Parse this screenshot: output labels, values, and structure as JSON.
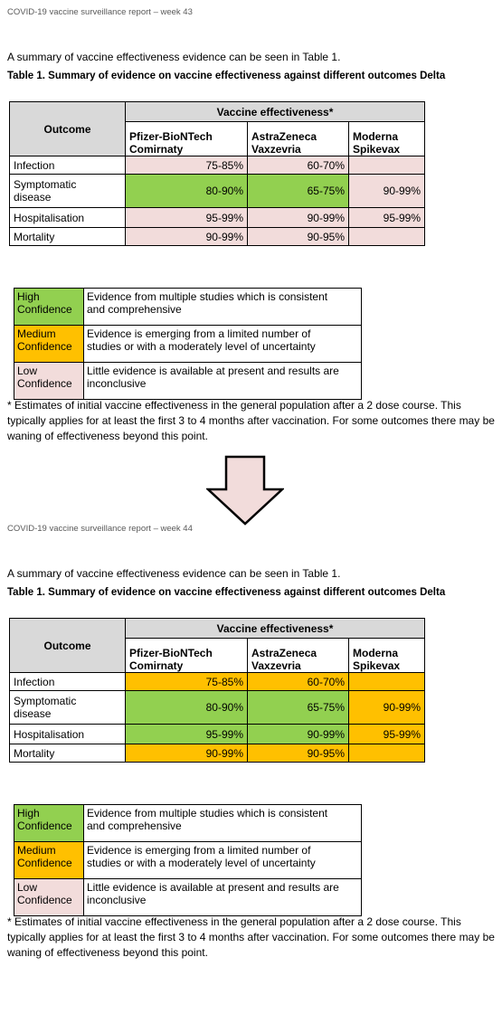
{
  "reports": [
    {
      "header": "COVID-19 vaccine surveillance report – week 43",
      "intro": "A summary of vaccine effectiveness evidence can be seen in Table 1.",
      "caption": "Table 1. Summary of evidence on vaccine effectiveness against different outcomes Delta",
      "table": {
        "outcome_header": "Outcome",
        "group_header": "Vaccine effectiveness*",
        "columns": [
          "Pfizer-BioNTech\nComirnaty",
          "AstraZeneca\nVaxzevria",
          "Moderna\nSpikevax"
        ],
        "rows": [
          {
            "label": "Infection",
            "cells": [
              {
                "text": "75-85%",
                "color": "#f2dcdb"
              },
              {
                "text": "60-70%",
                "color": "#f2dcdb"
              },
              {
                "text": null,
                "color": "#f2dcdb"
              }
            ]
          },
          {
            "label": "Symptomatic\ndisease",
            "cells": [
              {
                "text": "80-90%",
                "color": "#92d050"
              },
              {
                "text": "65-75%",
                "color": "#92d050"
              },
              {
                "text": "90-99%",
                "color": "#f2dcdb"
              }
            ]
          },
          {
            "label": "Hospitalisation",
            "cells": [
              {
                "text": "95-99%",
                "color": "#f2dcdb"
              },
              {
                "text": "90-99%",
                "color": "#f2dcdb"
              },
              {
                "text": "95-99%",
                "color": "#f2dcdb"
              }
            ]
          },
          {
            "label": "Mortality",
            "cells": [
              {
                "text": "90-99%",
                "color": "#f2dcdb"
              },
              {
                "text": "90-95%",
                "color": "#f2dcdb"
              },
              {
                "text": null,
                "color": "#f2dcdb"
              }
            ]
          }
        ]
      },
      "legend": [
        {
          "level": "High\nConfidence",
          "color": "#92d050",
          "description": "Evidence from multiple studies which is consistent\nand comprehensive"
        },
        {
          "level": "Medium\nConfidence",
          "color": "#ffc000",
          "description": "Evidence is emerging from a limited number of\nstudies or with a moderately level of uncertainty"
        },
        {
          "level": "Low\nConfidence",
          "color": "#f2dcdb",
          "description": "Little evidence is available at present and results are\ninconclusive"
        }
      ],
      "footnote": "* Estimates of initial vaccine effectiveness in the general population after a 2 dose course. This typically applies for at least the first 3 to 4 months after vaccination. For some outcomes there may be waning of effectiveness beyond this point."
    },
    {
      "header": "COVID-19 vaccine surveillance report – week 44",
      "intro": "A summary of vaccine effectiveness evidence can be seen in Table 1.",
      "caption": "Table 1. Summary of evidence on vaccine effectiveness against different outcomes Delta",
      "table": {
        "outcome_header": "Outcome",
        "group_header": "Vaccine effectiveness*",
        "columns": [
          "Pfizer-BioNTech\nComirnaty",
          "AstraZeneca\nVaxzevria",
          "Moderna\nSpikevax"
        ],
        "rows": [
          {
            "label": "Infection",
            "cells": [
              {
                "text": "75-85%",
                "color": "#ffc000"
              },
              {
                "text": "60-70%",
                "color": "#ffc000"
              },
              {
                "text": null,
                "color": "#ffc000"
              }
            ]
          },
          {
            "label": "Symptomatic\ndisease",
            "cells": [
              {
                "text": "80-90%",
                "color": "#92d050"
              },
              {
                "text": "65-75%",
                "color": "#92d050"
              },
              {
                "text": "90-99%",
                "color": "#ffc000"
              }
            ]
          },
          {
            "label": "Hospitalisation",
            "cells": [
              {
                "text": "95-99%",
                "color": "#92d050"
              },
              {
                "text": "90-99%",
                "color": "#92d050"
              },
              {
                "text": "95-99%",
                "color": "#ffc000"
              }
            ]
          },
          {
            "label": "Mortality",
            "cells": [
              {
                "text": "90-99%",
                "color": "#ffc000"
              },
              {
                "text": "90-95%",
                "color": "#ffc000"
              },
              {
                "text": null,
                "color": "#ffc000"
              }
            ]
          }
        ]
      },
      "legend": [
        {
          "level": "High\nConfidence",
          "color": "#92d050",
          "description": "Evidence from multiple studies which is consistent\nand comprehensive"
        },
        {
          "level": "Medium\nConfidence",
          "color": "#ffc000",
          "description": "Evidence is emerging from a limited number of\nstudies or with a moderately level of uncertainty"
        },
        {
          "level": "Low\nConfidence",
          "color": "#f2dcdb",
          "description": "Little evidence is available at present and results are\ninconclusive"
        }
      ],
      "footnote": "* Estimates of initial vaccine effectiveness in the general population after a 2 dose course. This typically applies for at least the first 3 to 4 months after vaccination. For some outcomes there may be waning of effectiveness beyond this point."
    }
  ]
}
